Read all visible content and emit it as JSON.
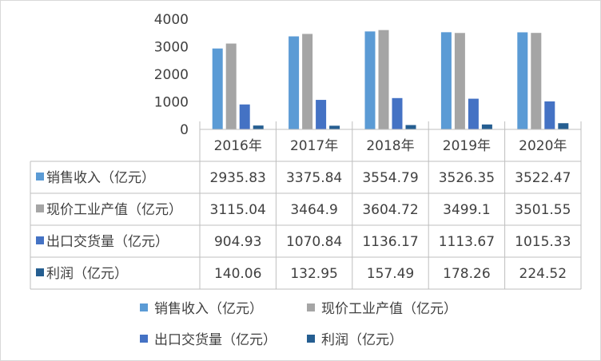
{
  "chart_data": {
    "type": "bar",
    "categories": [
      "2016年",
      "2017年",
      "2018年",
      "2019年",
      "2020年"
    ],
    "series": [
      {
        "name": "销售收入（亿元）",
        "values": [
          2935.83,
          3375.84,
          3554.79,
          3526.35,
          3522.47
        ],
        "labels": [
          "2935.83",
          "3375.84",
          "3554.79",
          "3526.35",
          "3522.47"
        ]
      },
      {
        "name": "现价工业产值（亿元）",
        "values": [
          3115.04,
          3464.9,
          3604.72,
          3499.1,
          3501.55
        ],
        "labels": [
          "3115.04",
          "3464.9",
          "3604.72",
          "3499.1",
          "3501.55"
        ]
      },
      {
        "name": "出口交货量（亿元）",
        "values": [
          904.93,
          1070.84,
          1136.17,
          1113.67,
          1015.33
        ],
        "labels": [
          "904.93",
          "1070.84",
          "1136.17",
          "1113.67",
          "1015.33"
        ]
      },
      {
        "name": "利润（亿元）",
        "values": [
          140.06,
          132.95,
          157.49,
          178.26,
          224.52
        ],
        "labels": [
          "140.06",
          "132.95",
          "157.49",
          "178.26",
          "224.52"
        ]
      }
    ],
    "colors": [
      "#5b9bd5",
      "#a5a5a5",
      "#4472c4",
      "#255e91"
    ],
    "yticks": [
      "0",
      "1000",
      "2000",
      "3000",
      "4000"
    ],
    "ylim": [
      0,
      4000
    ],
    "grid": false,
    "data_table": true,
    "legend_position": "bottom"
  }
}
